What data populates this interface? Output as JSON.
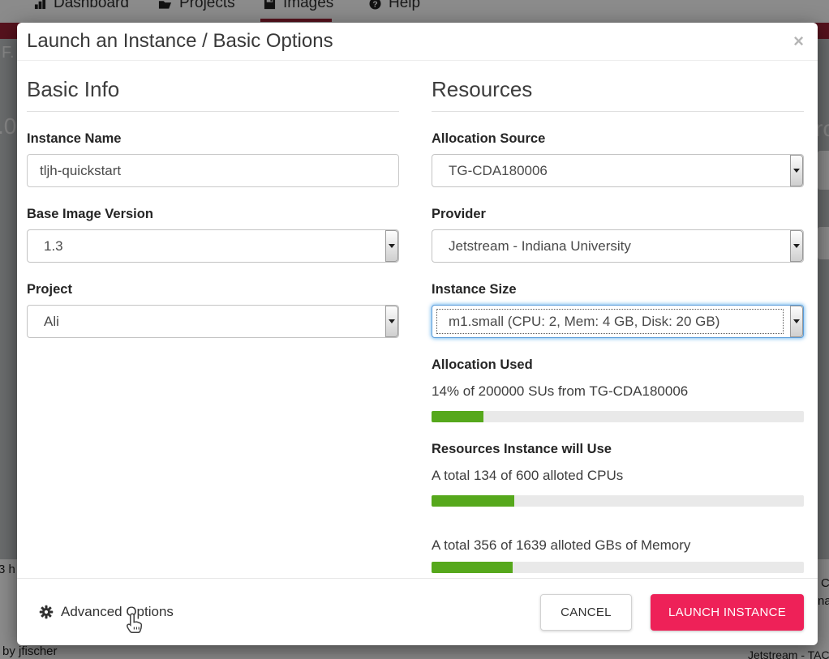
{
  "nav": {
    "items": [
      {
        "label": "Dashboard"
      },
      {
        "label": "Projects"
      },
      {
        "label": "Images"
      },
      {
        "label": "Help"
      }
    ]
  },
  "background_fragments": {
    "top_left": "F.",
    "mid_left": ".0",
    "mid_right": "ro",
    "bottom_left_partial": "3 h",
    "right_c": "C",
    "right_na": "na",
    "credit": "by jfischer",
    "provider_partial": "Jetstream - TACC"
  },
  "colors": {
    "accent_pink": "#ee2158",
    "progress_green": "#56a81c",
    "header_band_maroon": "#9d2235",
    "focus_blue": "#5b9dd9"
  },
  "modal": {
    "title": "Launch an Instance / Basic Options",
    "close_label": "×",
    "basic_info": {
      "heading": "Basic Info",
      "instance_name": {
        "label": "Instance Name",
        "value": "tljh-quickstart"
      },
      "base_image_version": {
        "label": "Base Image Version",
        "value": "1.3"
      },
      "project": {
        "label": "Project",
        "value": "Ali"
      }
    },
    "resources": {
      "heading": "Resources",
      "allocation_source": {
        "label": "Allocation Source",
        "value": "TG-CDA180006"
      },
      "provider": {
        "label": "Provider",
        "value": "Jetstream - Indiana University"
      },
      "instance_size": {
        "label": "Instance Size",
        "value": "m1.small (CPU: 2, Mem: 4 GB, Disk: 20 GB)"
      },
      "allocation_used": {
        "heading": "Allocation Used",
        "text": "14% of 200000 SUs from TG-CDA180006",
        "percent": 14
      },
      "resources_will_use": {
        "heading": "Resources Instance will Use",
        "cpu": {
          "text": "A total 134 of 600 alloted CPUs",
          "percent": 22.3
        },
        "memory": {
          "text": "A total 356 of 1639 alloted GBs of Memory",
          "percent": 21.7
        }
      }
    },
    "footer": {
      "advanced_options": "Advanced Options",
      "cancel": "CANCEL",
      "launch": "LAUNCH INSTANCE"
    }
  }
}
